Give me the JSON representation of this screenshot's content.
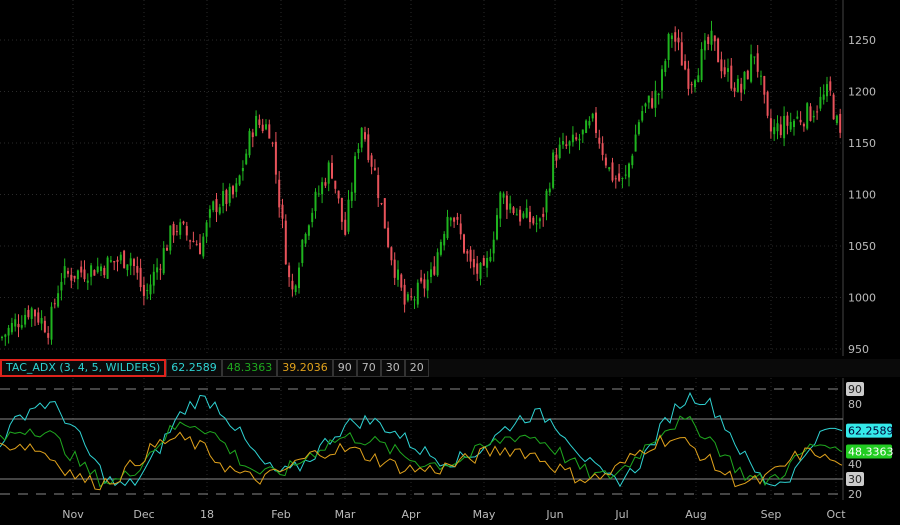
{
  "study_header": {
    "label": "TAC_ADX (3, 4, 5, WILDERS)",
    "adx": "62.2589",
    "di_plus": "48.3363",
    "di_minus": "39.2036",
    "levels": [
      "90",
      "70",
      "30",
      "20"
    ]
  },
  "colors": {
    "up": "#1fb41f",
    "down": "#e8525a",
    "adx": "#2fd3d3",
    "di_plus": "#1fa81f",
    "di_minus": "#e0a21c",
    "background": "#000000",
    "grid": "#333333"
  },
  "chart_data": [
    {
      "type": "candlestick",
      "ylim": [
        940,
        1280
      ],
      "y_ticks": [
        950,
        1000,
        1050,
        1100,
        1150,
        1200,
        1250
      ],
      "approx_close_path": [
        [
          "2017-10-01",
          960
        ],
        [
          "2017-10-14",
          990
        ],
        [
          "2017-10-22",
          970
        ],
        [
          "2017-10-27",
          1020
        ],
        [
          "2017-11-13",
          1030
        ],
        [
          "2017-11-26",
          1040
        ],
        [
          "2017-12-02",
          1000
        ],
        [
          "2017-12-15",
          1070
        ],
        [
          "2017-12-26",
          1050
        ],
        [
          "2018-01-01",
          1090
        ],
        [
          "2018-01-10",
          1100
        ],
        [
          "2018-01-18",
          1170
        ],
        [
          "2018-01-25",
          1165
        ],
        [
          "2018-01-28",
          1110
        ],
        [
          "2018-02-03",
          1000
        ],
        [
          "2018-02-09",
          1070
        ],
        [
          "2018-02-20",
          1130
        ],
        [
          "2018-02-26",
          1060
        ],
        [
          "2018-03-05",
          1170
        ],
        [
          "2018-03-11",
          1120
        ],
        [
          "2018-03-17",
          1050
        ],
        [
          "2018-03-24",
          990
        ],
        [
          "2018-04-04",
          1020
        ],
        [
          "2018-04-12",
          1090
        ],
        [
          "2018-04-21",
          1030
        ],
        [
          "2018-04-27",
          1020
        ],
        [
          "2018-05-04",
          1100
        ],
        [
          "2018-05-12",
          1080
        ],
        [
          "2018-05-21",
          1070
        ],
        [
          "2018-05-27",
          1140
        ],
        [
          "2018-06-05",
          1150
        ],
        [
          "2018-06-13",
          1170
        ],
        [
          "2018-06-20",
          1120
        ],
        [
          "2018-06-26",
          1110
        ],
        [
          "2018-07-03",
          1180
        ],
        [
          "2018-07-11",
          1200
        ],
        [
          "2018-07-16",
          1260
        ],
        [
          "2018-07-24",
          1210
        ],
        [
          "2018-08-02",
          1250
        ],
        [
          "2018-08-08",
          1220
        ],
        [
          "2018-08-15",
          1200
        ],
        [
          "2018-08-21",
          1240
        ],
        [
          "2018-08-27",
          1160
        ],
        [
          "2018-09-05",
          1170
        ],
        [
          "2018-09-14",
          1180
        ],
        [
          "2018-09-22",
          1200
        ],
        [
          "2018-09-27",
          1150
        ]
      ]
    },
    {
      "type": "line",
      "ylim": [
        15,
        95
      ],
      "y_ticks": [
        20,
        30,
        40,
        80,
        90
      ],
      "levels": {
        "dashed": [
          90,
          20
        ],
        "solid": [
          70,
          30
        ]
      },
      "series": [
        {
          "name": "ADX",
          "last": 62.2589
        },
        {
          "name": "DI+",
          "last": 48.3363
        },
        {
          "name": "DI-",
          "last": 39.2036
        }
      ]
    }
  ],
  "x_axis": {
    "labels": [
      "Nov",
      "Dec",
      "18",
      "Feb",
      "Mar",
      "Apr",
      "May",
      "Jun",
      "Jul",
      "Aug",
      "Sep",
      "Oct"
    ]
  }
}
